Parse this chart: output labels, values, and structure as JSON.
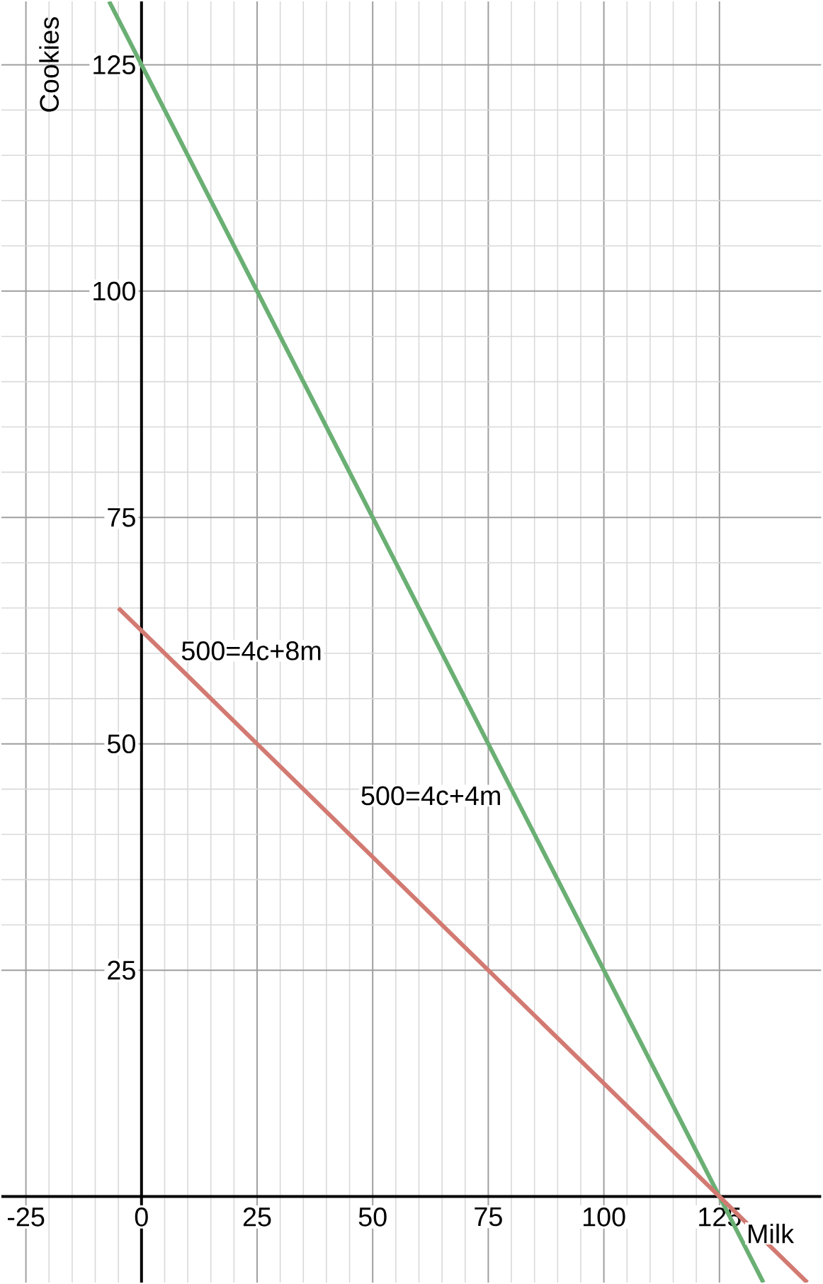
{
  "chart_data": {
    "type": "line",
    "xlabel": "Milk",
    "ylabel": "Cookies",
    "xlim": [
      -30.3,
      147
    ],
    "ylim": [
      -9.5,
      132
    ],
    "xticks": [
      -25,
      0,
      25,
      50,
      75,
      100,
      125
    ],
    "yticks": [
      25,
      50,
      75,
      100,
      125
    ],
    "grid": true,
    "series": [
      {
        "name": "500=4c+4m",
        "color": "#6aaf73",
        "x": [
          -7,
          134.5
        ],
        "values": [
          132,
          -9.5
        ]
      },
      {
        "name": "500=4c+8m",
        "color": "#d27a72",
        "x": [
          -5,
          144
        ],
        "values": [
          65,
          -9.5
        ]
      }
    ]
  }
}
